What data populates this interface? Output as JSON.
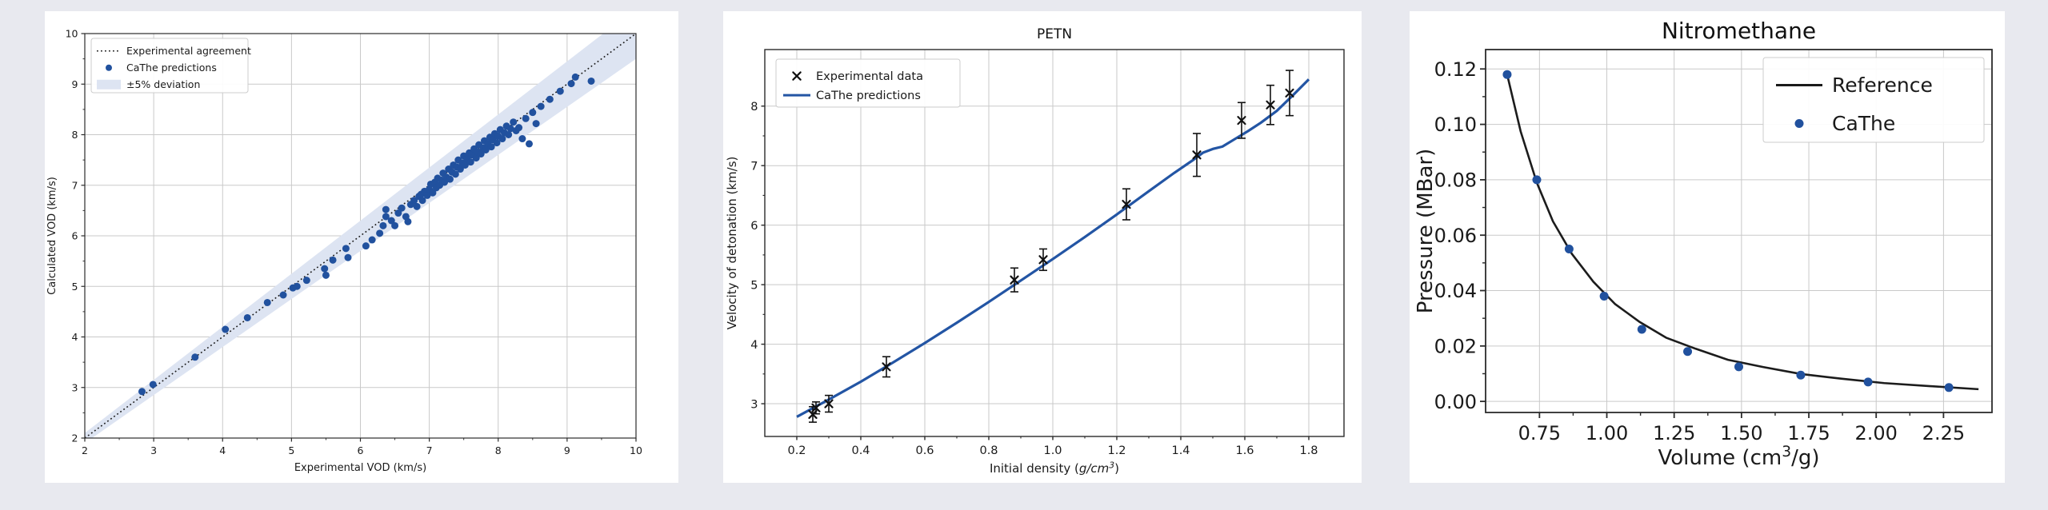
{
  "page": {
    "background": "#e8e9ef",
    "card_background": "#ffffff",
    "grid_color": "#c9c9c9",
    "spine_color": "#2b2b2b",
    "text_color": "#1a1a1a"
  },
  "chart_data": [
    {
      "type": "scatter",
      "title": "",
      "xlabel": "Experimental VOD (km/s)",
      "ylabel": "Calculated VOD (km/s)",
      "xlim": [
        2,
        10
      ],
      "ylim": [
        2,
        10
      ],
      "xtick_vals": [
        2,
        3,
        4,
        5,
        6,
        7,
        8,
        9,
        10
      ],
      "xtick_labels": [
        "2",
        "3",
        "4",
        "5",
        "6",
        "7",
        "8",
        "9",
        "10"
      ],
      "ytick_vals": [
        2,
        3,
        4,
        5,
        6,
        7,
        8,
        9,
        10
      ],
      "ytick_labels": [
        "2",
        "3",
        "4",
        "5",
        "6",
        "7",
        "8",
        "9",
        "10"
      ],
      "grid": true,
      "legend_position": "upper-left",
      "legend": [
        {
          "label": "Experimental agreement",
          "swatch": "dotted-line",
          "color": "#1a1a1a"
        },
        {
          "label": "CaThe predictions",
          "swatch": "dot",
          "color": "#21519e"
        },
        {
          "label": "±5% deviation",
          "swatch": "band",
          "color": "#dde4f2"
        }
      ],
      "identity_line": {
        "from": 2,
        "to": 10,
        "style": "dotted",
        "color": "#1a1a1a"
      },
      "deviation_band_pct": 5,
      "band_color": "#dde4f2",
      "marker_color": "#21519e",
      "points": [
        [
          2.83,
          2.92
        ],
        [
          2.99,
          3.06
        ],
        [
          3.6,
          3.6
        ],
        [
          4.04,
          4.15
        ],
        [
          4.36,
          4.38
        ],
        [
          4.65,
          4.68
        ],
        [
          4.88,
          4.83
        ],
        [
          5.02,
          4.97
        ],
        [
          5.08,
          5.0
        ],
        [
          5.22,
          5.12
        ],
        [
          5.48,
          5.35
        ],
        [
          5.5,
          5.22
        ],
        [
          5.6,
          5.52
        ],
        [
          5.79,
          5.75
        ],
        [
          5.82,
          5.57
        ],
        [
          6.08,
          5.8
        ],
        [
          6.17,
          5.92
        ],
        [
          6.28,
          6.05
        ],
        [
          6.33,
          6.2
        ],
        [
          6.37,
          6.38
        ],
        [
          6.37,
          6.52
        ],
        [
          6.45,
          6.3
        ],
        [
          6.5,
          6.2
        ],
        [
          6.55,
          6.45
        ],
        [
          6.6,
          6.55
        ],
        [
          6.66,
          6.38
        ],
        [
          6.69,
          6.28
        ],
        [
          6.73,
          6.62
        ],
        [
          6.78,
          6.7
        ],
        [
          6.82,
          6.58
        ],
        [
          6.85,
          6.78
        ],
        [
          6.88,
          6.82
        ],
        [
          6.9,
          6.7
        ],
        [
          6.93,
          6.88
        ],
        [
          6.97,
          6.8
        ],
        [
          7.0,
          6.92
        ],
        [
          7.02,
          7.02
        ],
        [
          7.05,
          6.85
        ],
        [
          7.08,
          7.06
        ],
        [
          7.1,
          6.95
        ],
        [
          7.12,
          7.14
        ],
        [
          7.15,
          7.0
        ],
        [
          7.18,
          7.1
        ],
        [
          7.2,
          7.24
        ],
        [
          7.22,
          7.06
        ],
        [
          7.25,
          7.16
        ],
        [
          7.28,
          7.32
        ],
        [
          7.3,
          7.12
        ],
        [
          7.33,
          7.26
        ],
        [
          7.35,
          7.4
        ],
        [
          7.38,
          7.22
        ],
        [
          7.4,
          7.36
        ],
        [
          7.42,
          7.5
        ],
        [
          7.45,
          7.32
        ],
        [
          7.48,
          7.44
        ],
        [
          7.5,
          7.58
        ],
        [
          7.52,
          7.4
        ],
        [
          7.55,
          7.52
        ],
        [
          7.58,
          7.64
        ],
        [
          7.6,
          7.46
        ],
        [
          7.62,
          7.6
        ],
        [
          7.65,
          7.72
        ],
        [
          7.68,
          7.54
        ],
        [
          7.7,
          7.66
        ],
        [
          7.72,
          7.8
        ],
        [
          7.75,
          7.62
        ],
        [
          7.78,
          7.74
        ],
        [
          7.8,
          7.88
        ],
        [
          7.82,
          7.7
        ],
        [
          7.85,
          7.82
        ],
        [
          7.88,
          7.95
        ],
        [
          7.9,
          7.76
        ],
        [
          7.92,
          7.9
        ],
        [
          7.95,
          8.02
        ],
        [
          7.98,
          7.84
        ],
        [
          8.0,
          7.97
        ],
        [
          8.03,
          8.1
        ],
        [
          8.06,
          7.92
        ],
        [
          8.09,
          8.04
        ],
        [
          8.12,
          8.17
        ],
        [
          8.15,
          8.0
        ],
        [
          8.18,
          8.12
        ],
        [
          8.22,
          8.25
        ],
        [
          8.26,
          8.08
        ],
        [
          8.3,
          8.14
        ],
        [
          8.35,
          7.92
        ],
        [
          8.45,
          7.82
        ],
        [
          8.4,
          8.32
        ],
        [
          8.5,
          8.44
        ],
        [
          8.55,
          8.22
        ],
        [
          8.62,
          8.56
        ],
        [
          8.75,
          8.7
        ],
        [
          8.9,
          8.86
        ],
        [
          9.06,
          9.01
        ],
        [
          9.12,
          9.14
        ],
        [
          9.35,
          9.06
        ]
      ]
    },
    {
      "type": "line",
      "title": "PETN",
      "xlabel_parts": [
        {
          "t": "Initial density ("
        },
        {
          "t": "g/cm",
          "italic": true
        },
        {
          "t": "3",
          "italic": true,
          "sup": true
        },
        {
          "t": ")"
        }
      ],
      "ylabel": "Velocity of detonation (km/s)",
      "xlim": [
        0.1,
        1.91
      ],
      "ylim": [
        2.45,
        8.95
      ],
      "xtick_vals": [
        0.2,
        0.4,
        0.6,
        0.8,
        1.0,
        1.2,
        1.4,
        1.6,
        1.8
      ],
      "xtick_labels": [
        "0.2",
        "0.4",
        "0.6",
        "0.8",
        "1.0",
        "1.2",
        "1.4",
        "1.6",
        "1.8"
      ],
      "ytick_vals": [
        3,
        4,
        5,
        6,
        7,
        8
      ],
      "ytick_labels": [
        "3",
        "4",
        "5",
        "6",
        "7",
        "8"
      ],
      "grid": true,
      "legend_position": "upper-left",
      "legend": [
        {
          "label": "Experimental data",
          "swatch": "x-marker",
          "color": "#1a1a1a"
        },
        {
          "label": "CaThe predictions",
          "swatch": "line",
          "color": "#2355a4"
        }
      ],
      "line_color": "#2355a4",
      "line": {
        "x": [
          0.2,
          0.3,
          0.4,
          0.5,
          0.6,
          0.7,
          0.8,
          0.9,
          1.0,
          1.1,
          1.2,
          1.3,
          1.38,
          1.44,
          1.47,
          1.5,
          1.53,
          1.57,
          1.61,
          1.65,
          1.7,
          1.75,
          1.8
        ],
        "y": [
          2.78,
          3.07,
          3.37,
          3.69,
          4.02,
          4.36,
          4.71,
          5.07,
          5.43,
          5.8,
          6.18,
          6.57,
          6.88,
          7.1,
          7.22,
          7.28,
          7.32,
          7.45,
          7.58,
          7.72,
          7.92,
          8.18,
          8.45
        ]
      },
      "experimental_points": [
        {
          "x": 0.25,
          "y": 2.82,
          "err": 0.13
        },
        {
          "x": 0.26,
          "y": 2.93,
          "err": 0.1
        },
        {
          "x": 0.3,
          "y": 3.0,
          "err": 0.14
        },
        {
          "x": 0.48,
          "y": 3.62,
          "err": 0.17
        },
        {
          "x": 0.88,
          "y": 5.08,
          "err": 0.2
        },
        {
          "x": 0.97,
          "y": 5.42,
          "err": 0.18
        },
        {
          "x": 1.23,
          "y": 6.35,
          "err": 0.26
        },
        {
          "x": 1.45,
          "y": 7.18,
          "err": 0.36
        },
        {
          "x": 1.59,
          "y": 7.76,
          "err": 0.3
        },
        {
          "x": 1.68,
          "y": 8.02,
          "err": 0.33
        },
        {
          "x": 1.74,
          "y": 8.22,
          "err": 0.38
        }
      ]
    },
    {
      "type": "line-scatter",
      "title": "Nitromethane",
      "xlabel_parts": [
        {
          "t": "Volume (cm"
        },
        {
          "t": "3",
          "sup": true
        },
        {
          "t": "/g)"
        }
      ],
      "ylabel": "Pressure (MBar)",
      "xlim": [
        0.55,
        2.43
      ],
      "ylim": [
        -0.004,
        0.127
      ],
      "xtick_vals": [
        0.75,
        1.0,
        1.25,
        1.5,
        1.75,
        2.0,
        2.25
      ],
      "xtick_labels": [
        "0.75",
        "1.00",
        "1.25",
        "1.50",
        "1.75",
        "2.00",
        "2.25"
      ],
      "ytick_vals": [
        0.0,
        0.02,
        0.04,
        0.06,
        0.08,
        0.1,
        0.12
      ],
      "ytick_labels": [
        "0.00",
        "0.02",
        "0.04",
        "0.06",
        "0.08",
        "0.10",
        "0.12"
      ],
      "grid": true,
      "legend_position": "upper-right",
      "legend": [
        {
          "label": "Reference",
          "swatch": "line",
          "color": "#1a1a1a"
        },
        {
          "label": "CaThe",
          "swatch": "dot",
          "color": "#21519e"
        }
      ],
      "line_color": "#1c1c1c",
      "marker_color": "#21519e",
      "reference_line": {
        "x": [
          0.63,
          0.68,
          0.74,
          0.8,
          0.87,
          0.95,
          1.03,
          1.12,
          1.22,
          1.33,
          1.45,
          1.58,
          1.72,
          1.87,
          2.03,
          2.2,
          2.38
        ],
        "y": [
          0.118,
          0.0975,
          0.079,
          0.065,
          0.0533,
          0.0432,
          0.0352,
          0.0288,
          0.023,
          0.019,
          0.015,
          0.0124,
          0.0099,
          0.0082,
          0.0066,
          0.0055,
          0.0044
        ]
      },
      "cathe_points": [
        [
          0.63,
          0.118
        ],
        [
          0.74,
          0.08
        ],
        [
          0.86,
          0.055
        ],
        [
          0.99,
          0.038
        ],
        [
          1.13,
          0.026
        ],
        [
          1.3,
          0.018
        ],
        [
          1.49,
          0.0125
        ],
        [
          1.72,
          0.0095
        ],
        [
          1.97,
          0.007
        ],
        [
          2.27,
          0.005
        ]
      ]
    }
  ]
}
